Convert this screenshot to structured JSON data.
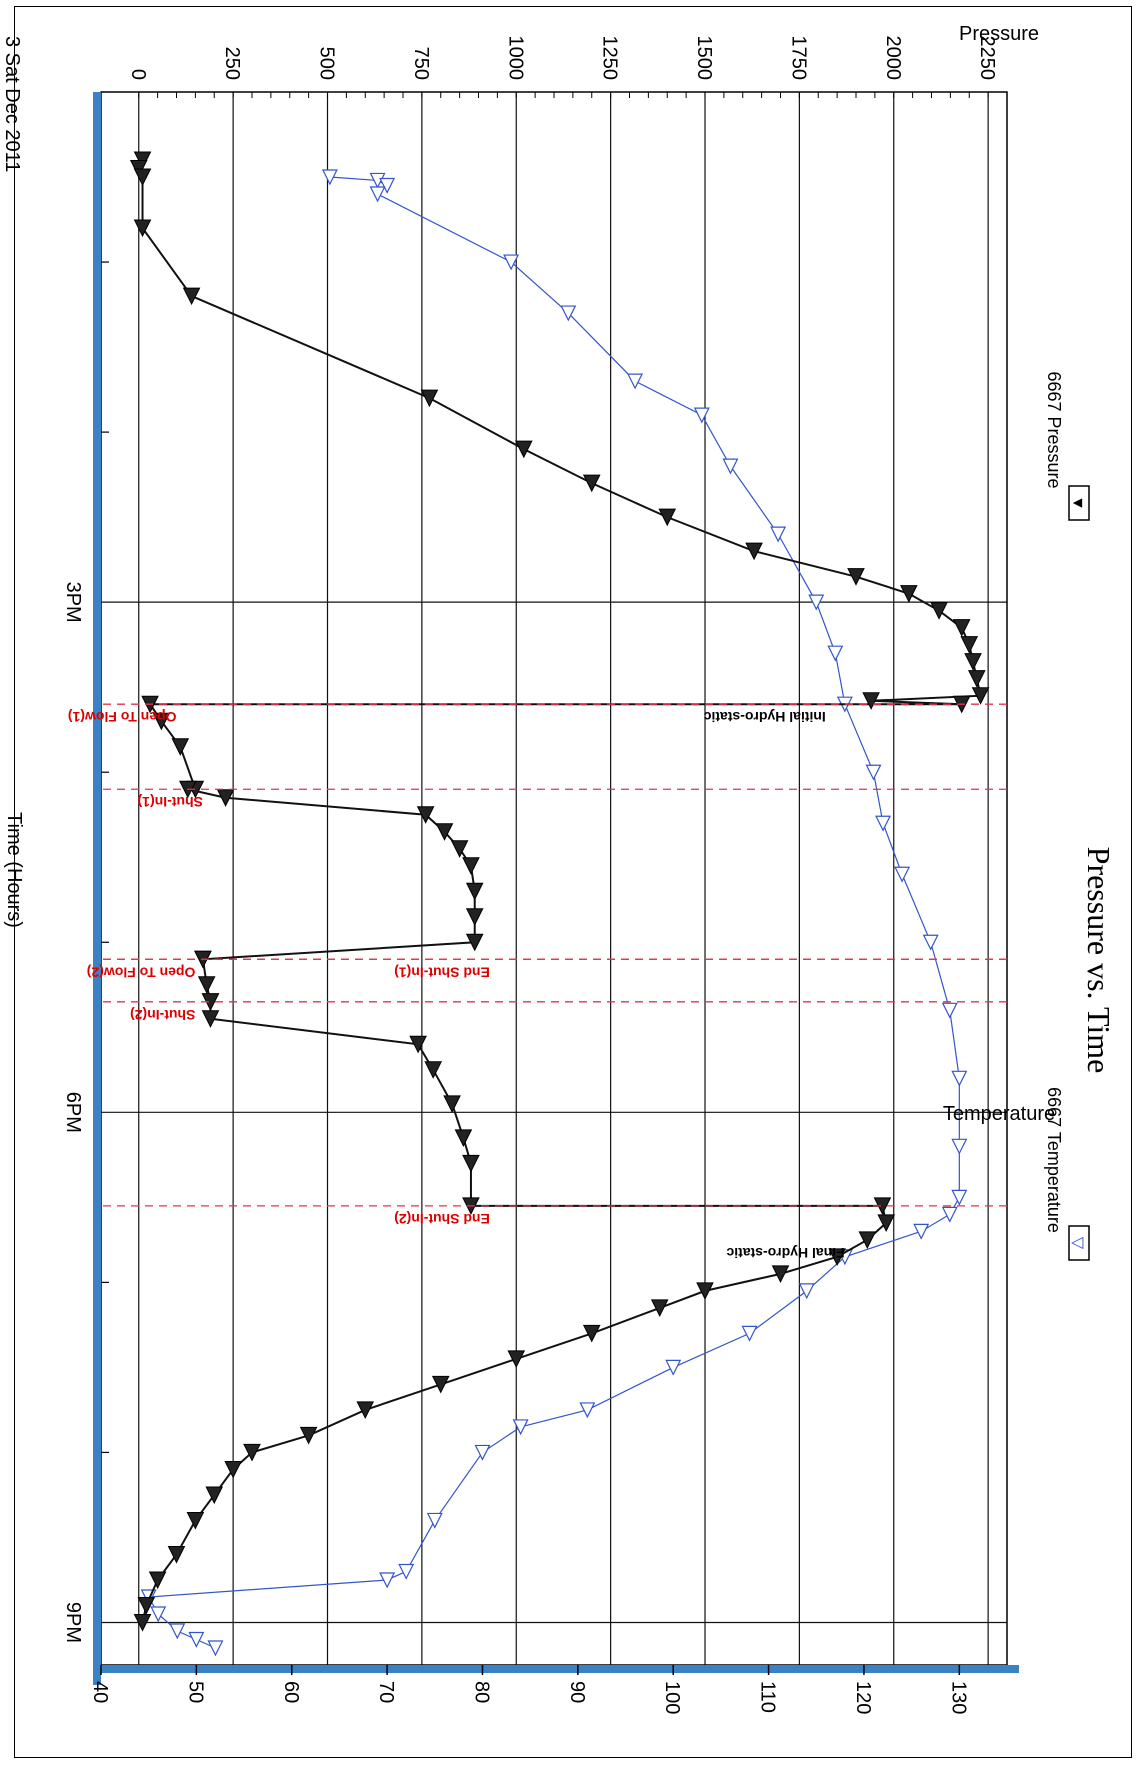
{
  "chart_data": {
    "type": "line",
    "title": "Pressure vs. Time",
    "date_label": "3 Sat Dec 2011",
    "xlabel": "Time (Hours)",
    "ylabel_left": "Pressure",
    "ylabel_right": "Temperature",
    "x_ticks": [
      "3PM",
      "6PM",
      "9PM"
    ],
    "x_range_hours": [
      12.0,
      21.25
    ],
    "ylim_pressure": [
      -100,
      2300
    ],
    "ylim_temperature": [
      40,
      135
    ],
    "pressure_ticks": [
      0,
      250,
      500,
      750,
      1000,
      1250,
      1500,
      1750,
      2000,
      2250
    ],
    "temperature_ticks": [
      40,
      50,
      60,
      70,
      80,
      90,
      100,
      110,
      120,
      130
    ],
    "grid": true,
    "legend": [
      {
        "name": "6667 Pressure",
        "marker": "▼",
        "color": "#000000"
      },
      {
        "name": "6667 Temperature",
        "marker": "▽",
        "color": "#3355cc"
      }
    ],
    "series": [
      {
        "name": "6667 Pressure",
        "color": "#111111",
        "x": [
          12.4,
          12.45,
          12.5,
          12.8,
          13.2,
          13.8,
          14.1,
          14.3,
          14.5,
          14.7,
          14.85,
          14.95,
          15.05,
          15.15,
          15.25,
          15.35,
          15.45,
          15.55,
          15.58,
          15.6,
          15.6,
          15.7,
          15.85,
          16.1,
          16.1,
          16.15,
          16.25,
          16.35,
          16.45,
          16.55,
          16.7,
          16.85,
          17.0,
          17.1,
          17.1,
          17.25,
          17.35,
          17.35,
          17.45,
          17.6,
          17.75,
          17.95,
          18.15,
          18.3,
          18.55,
          18.55,
          18.65,
          18.75,
          18.85,
          18.95,
          19.05,
          19.15,
          19.3,
          19.45,
          19.6,
          19.75,
          19.9,
          20.0,
          20.1,
          20.25,
          20.4,
          20.6,
          20.75,
          20.9,
          21.0
        ],
        "y": [
          10,
          0,
          10,
          10,
          140,
          770,
          1020,
          1200,
          1400,
          1630,
          1900,
          2040,
          2120,
          2180,
          2200,
          2210,
          2220,
          2230,
          1940,
          2180,
          30,
          60,
          110,
          150,
          130,
          230,
          760,
          810,
          850,
          880,
          890,
          890,
          890,
          170,
          170,
          180,
          190,
          190,
          190,
          740,
          780,
          830,
          860,
          880,
          880,
          1970,
          1980,
          1930,
          1850,
          1700,
          1500,
          1380,
          1200,
          1000,
          800,
          600,
          450,
          300,
          250,
          200,
          150,
          100,
          50,
          20,
          10
        ]
      },
      {
        "name": "6667 Temperature",
        "color": "#3355cc",
        "x": [
          12.5,
          12.52,
          12.55,
          12.6,
          13.0,
          13.3,
          13.7,
          13.9,
          14.2,
          14.6,
          15.0,
          15.3,
          15.6,
          16.0,
          16.3,
          16.6,
          17.0,
          17.4,
          17.8,
          18.2,
          18.5,
          18.6,
          18.7,
          18.85,
          19.05,
          19.3,
          19.5,
          19.75,
          19.85,
          20.0,
          20.4,
          20.7,
          20.75,
          20.85,
          20.95,
          21.05,
          21.1,
          21.15
        ],
        "y": [
          64,
          69,
          70,
          69,
          83,
          89,
          96,
          103,
          106,
          111,
          115,
          117,
          118,
          121,
          122,
          124,
          127,
          129,
          130,
          130,
          130,
          129,
          126,
          118,
          114,
          108,
          100,
          91,
          84,
          80,
          75,
          72,
          70,
          45,
          46,
          48,
          50,
          52
        ]
      }
    ],
    "event_markers": [
      {
        "label": "Initial Hydro-static",
        "color": "#000000",
        "x": 15.6
      },
      {
        "label": "Open To Flow(1)",
        "color": "#dd0000",
        "x": 15.6
      },
      {
        "label": "Shut-In(1)",
        "color": "#dd0000",
        "x": 16.1
      },
      {
        "label": "End Shut-In(1)",
        "color": "#dd0000",
        "x": 17.1
      },
      {
        "label": "Open To Flow(2)",
        "color": "#dd0000",
        "x": 17.1
      },
      {
        "label": "Shut-In(2)",
        "color": "#dd0000",
        "x": 17.35
      },
      {
        "label": "End Shut-In(2)",
        "color": "#dd0000",
        "x": 18.55
      },
      {
        "label": "Final Hydro-static",
        "color": "#000000",
        "x": 18.75
      }
    ]
  }
}
